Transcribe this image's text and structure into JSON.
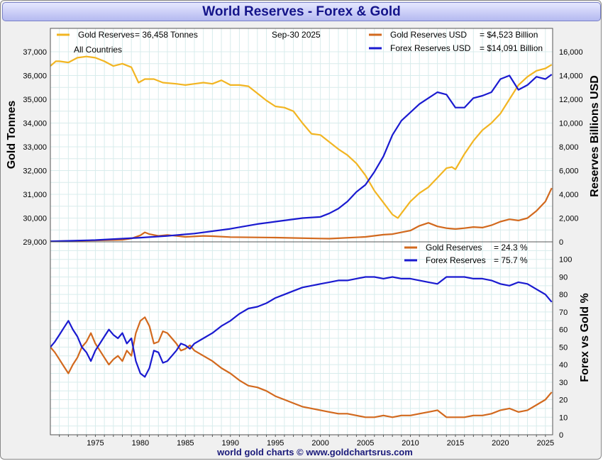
{
  "chart_title": "World Reserves - Forex & Gold",
  "footer": "world gold charts © www.goldchartsrus.com",
  "colors": {
    "gold_tonnes": "#F2B522",
    "gold_usd": "#D2691E",
    "forex": "#1A1AD0",
    "background": "#FFFFFF",
    "grid": "#D8ECEC"
  },
  "chart_data": [
    {
      "type": "line",
      "panel": "top",
      "date_label": "Sep-30  2025",
      "annotations": [
        "All Countries"
      ],
      "legend": {
        "gold_tonnes": {
          "label": "Gold Reserves",
          "value": "= 36,458 Tonnes"
        },
        "gold_usd": {
          "label": "Gold Reserves USD",
          "value": "= $4,523 Billion"
        },
        "forex": {
          "label": "Forex Reserves USD",
          "value": "= $14,091 Billion"
        }
      },
      "ylabel_left": "Gold Tonnes",
      "ylabel_right": "Reserves Billions USD",
      "ylim_left": [
        29000,
        37000
      ],
      "ylim_right": [
        0,
        16000
      ],
      "xlim": [
        1970,
        2025.8
      ],
      "grid": true,
      "left_ticks": [
        "29,000",
        "30,000",
        "31,000",
        "32,000",
        "33,000",
        "34,000",
        "35,000",
        "36,000",
        "37,000"
      ],
      "right_ticks": [
        "0",
        "2,000",
        "4,000",
        "6,000",
        "8,000",
        "10,000",
        "12,000",
        "14,000",
        "16,000"
      ],
      "series": [
        {
          "name": "Gold Reserves",
          "axis": "left",
          "units": "tonnes",
          "x": [
            1970,
            1970.6,
            1971,
            1972,
            1973,
            1974,
            1975,
            1976,
            1977,
            1978,
            1979,
            1979.8,
            1980.5,
            1981.5,
            1982.5,
            1984,
            1985,
            1986,
            1987,
            1988,
            1989,
            1990,
            1991,
            1992,
            1993,
            1994,
            1995,
            1996,
            1997,
            1998,
            1999,
            2000,
            2001,
            2002,
            2003,
            2004,
            2005,
            2006,
            2007,
            2008,
            2008.6,
            2009,
            2010,
            2011,
            2012,
            2013,
            2014,
            2014.6,
            2015,
            2016,
            2017,
            2018,
            2019,
            2020,
            2021,
            2022,
            2023,
            2024,
            2025,
            2025.7
          ],
          "y": [
            36400,
            36600,
            36600,
            36550,
            36750,
            36800,
            36750,
            36600,
            36400,
            36500,
            36350,
            35700,
            35850,
            35850,
            35700,
            35650,
            35600,
            35650,
            35700,
            35650,
            35800,
            35600,
            35600,
            35550,
            35250,
            34950,
            34700,
            34650,
            34500,
            34000,
            33550,
            33500,
            33200,
            32900,
            32650,
            32300,
            31800,
            31150,
            30650,
            30150,
            30000,
            30200,
            30700,
            31050,
            31300,
            31700,
            32100,
            32150,
            32050,
            32700,
            33250,
            33700,
            34000,
            34400,
            35000,
            35600,
            35950,
            36200,
            36300,
            36458
          ]
        },
        {
          "name": "Gold Reserves USD",
          "axis": "right",
          "units": "USD billions",
          "x": [
            1970,
            1975,
            1978,
            1979,
            1980,
            1980.5,
            1981,
            1982,
            1983,
            1985,
            1987,
            1988,
            1990,
            1995,
            2000,
            2001,
            2005,
            2007,
            2008,
            2009,
            2010,
            2011,
            2012,
            2013,
            2014,
            2015,
            2016,
            2017,
            2018,
            2019,
            2020,
            2021,
            2022,
            2023,
            2024,
            2025,
            2025.7
          ],
          "y": [
            40,
            120,
            170,
            280,
            550,
            800,
            650,
            500,
            580,
            420,
            500,
            480,
            400,
            360,
            280,
            270,
            420,
            600,
            650,
            800,
            950,
            1350,
            1600,
            1300,
            1150,
            1080,
            1150,
            1250,
            1200,
            1400,
            1700,
            1900,
            1800,
            2000,
            2600,
            3400,
            4523
          ]
        },
        {
          "name": "Forex Reserves USD",
          "axis": "right",
          "units": "USD billions",
          "x": [
            1970,
            1975,
            1980,
            1983,
            1986,
            1990,
            1993,
            1995,
            1998,
            2000,
            2001,
            2002,
            2003,
            2004,
            2005,
            2006,
            2007,
            2008,
            2009,
            2010,
            2011,
            2012,
            2013,
            2014,
            2015,
            2016,
            2017,
            2018,
            2019,
            2020,
            2021,
            2022,
            2023,
            2024,
            2025,
            2025.7
          ],
          "y": [
            50,
            150,
            350,
            500,
            700,
            1100,
            1500,
            1700,
            2000,
            2100,
            2400,
            2800,
            3400,
            4200,
            4800,
            5900,
            7200,
            9000,
            10200,
            10900,
            11600,
            12100,
            12600,
            12400,
            11300,
            11300,
            12100,
            12300,
            12600,
            13700,
            14000,
            12800,
            13200,
            13900,
            13700,
            14091
          ]
        }
      ]
    },
    {
      "type": "line",
      "panel": "bottom",
      "legend": {
        "gold_pct": {
          "label": "Gold Reserves",
          "value": "= 24.3 %"
        },
        "forex_pct": {
          "label": "Forex Reserves",
          "value": "= 75.7 %"
        }
      },
      "ylabel_right": "Forex vs Gold %",
      "ylim": [
        0,
        110
      ],
      "xlim": [
        1970,
        2025.8
      ],
      "grid": true,
      "right_ticks": [
        "0",
        "10",
        "20",
        "30",
        "40",
        "50",
        "60",
        "70",
        "80",
        "90",
        "100"
      ],
      "x_ticks": [
        "1975",
        "1980",
        "1985",
        "1990",
        "1995",
        "2000",
        "2005",
        "2010",
        "2015",
        "2020",
        "2025"
      ],
      "series": [
        {
          "name": "Forex Reserves",
          "units": "percent",
          "x": [
            1970,
            1970.5,
            1971,
            1971.5,
            1972,
            1972.5,
            1973,
            1973.5,
            1974,
            1974.5,
            1975,
            1975.5,
            1976,
            1976.5,
            1977,
            1977.5,
            1978,
            1978.5,
            1979,
            1979.5,
            1980,
            1980.5,
            1981,
            1981.5,
            1982,
            1982.5,
            1983,
            1983.5,
            1984,
            1984.5,
            1985,
            1985.5,
            1986,
            1987,
            1988,
            1989,
            1990,
            1991,
            1992,
            1993,
            1994,
            1995,
            1996,
            1997,
            1998,
            1999,
            2000,
            2001,
            2002,
            2003,
            2004,
            2005,
            2006,
            2007,
            2008,
            2009,
            2010,
            2011,
            2012,
            2013,
            2014,
            2015,
            2016,
            2017,
            2018,
            2019,
            2020,
            2021,
            2022,
            2023,
            2024,
            2025,
            2025.7
          ],
          "y": [
            50,
            53,
            57,
            61,
            65,
            60,
            56,
            50,
            47,
            42,
            48,
            52,
            56,
            60,
            57,
            55,
            58,
            52,
            55,
            42,
            35,
            33,
            38,
            48,
            47,
            41,
            42,
            45,
            48,
            52,
            51,
            49,
            52,
            55,
            58,
            62,
            65,
            69,
            72,
            73,
            75,
            78,
            80,
            82,
            84,
            85,
            86,
            87,
            88,
            88,
            89,
            90,
            90,
            89,
            90,
            89,
            89,
            88,
            87,
            86,
            90,
            90,
            90,
            89,
            89,
            88,
            86,
            85,
            87,
            86,
            83,
            80,
            75.7
          ]
        },
        {
          "name": "Gold Reserves",
          "units": "percent",
          "x": [
            1970,
            1970.5,
            1971,
            1971.5,
            1972,
            1972.5,
            1973,
            1973.5,
            1974,
            1974.5,
            1975,
            1975.5,
            1976,
            1976.5,
            1977,
            1977.5,
            1978,
            1978.5,
            1979,
            1979.5,
            1980,
            1980.5,
            1981,
            1981.5,
            1982,
            1982.5,
            1983,
            1983.5,
            1984,
            1984.5,
            1985,
            1985.5,
            1986,
            1987,
            1988,
            1989,
            1990,
            1991,
            1992,
            1993,
            1994,
            1995,
            1996,
            1997,
            1998,
            1999,
            2000,
            2001,
            2002,
            2003,
            2004,
            2005,
            2006,
            2007,
            2008,
            2009,
            2010,
            2011,
            2012,
            2013,
            2014,
            2015,
            2016,
            2017,
            2018,
            2019,
            2020,
            2021,
            2022,
            2023,
            2024,
            2025,
            2025.7
          ],
          "y": [
            50,
            47,
            43,
            39,
            35,
            40,
            44,
            50,
            53,
            58,
            52,
            48,
            44,
            40,
            43,
            45,
            42,
            48,
            45,
            58,
            65,
            67,
            62,
            52,
            53,
            59,
            58,
            55,
            52,
            48,
            49,
            51,
            48,
            45,
            42,
            38,
            35,
            31,
            28,
            27,
            25,
            22,
            20,
            18,
            16,
            15,
            14,
            13,
            12,
            12,
            11,
            10,
            10,
            11,
            10,
            11,
            11,
            12,
            13,
            14,
            10,
            10,
            10,
            11,
            11,
            12,
            14,
            15,
            13,
            14,
            17,
            20,
            24.3
          ]
        }
      ]
    }
  ]
}
